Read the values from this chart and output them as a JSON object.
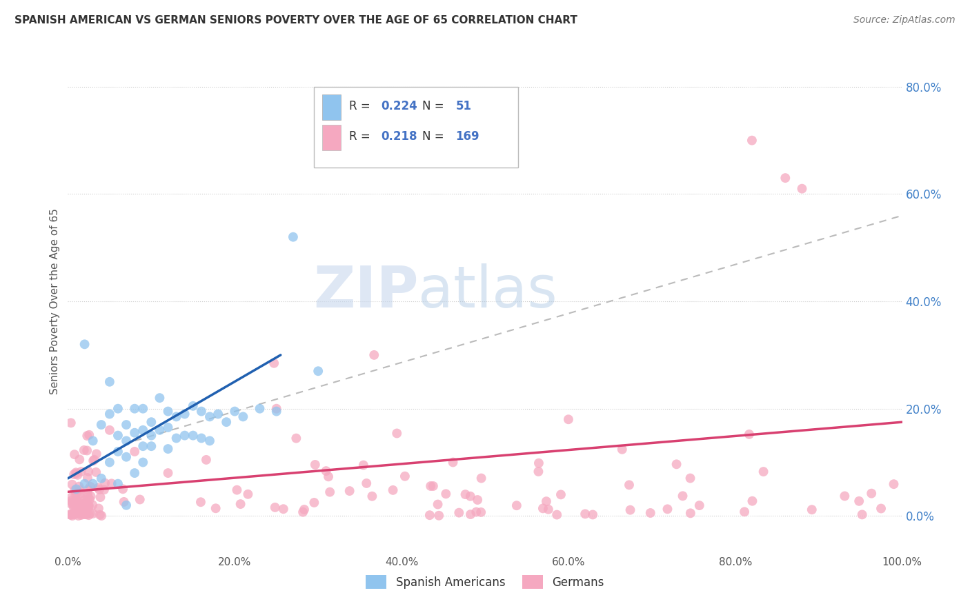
{
  "title": "SPANISH AMERICAN VS GERMAN SENIORS POVERTY OVER THE AGE OF 65 CORRELATION CHART",
  "source": "Source: ZipAtlas.com",
  "ylabel": "Seniors Poverty Over the Age of 65",
  "xlim": [
    0,
    1.0
  ],
  "ylim": [
    -0.07,
    0.87
  ],
  "xtick_labels": [
    "0.0%",
    "20.0%",
    "40.0%",
    "60.0%",
    "80.0%",
    "100.0%"
  ],
  "ytick_labels": [
    "0.0%",
    "20.0%",
    "40.0%",
    "60.0%",
    "80.0%"
  ],
  "ytick_positions": [
    0.0,
    0.2,
    0.4,
    0.6,
    0.8
  ],
  "blue_R": "0.224",
  "blue_N": "51",
  "pink_R": "0.218",
  "pink_N": "169",
  "blue_color": "#90C4EE",
  "pink_color": "#F5A8C0",
  "blue_line_color": "#2060B0",
  "pink_line_color": "#D84070",
  "dashed_line_color": "#BBBBBB",
  "watermark_zip": "ZIP",
  "watermark_atlas": "atlas",
  "legend_label_blue": "Spanish Americans",
  "legend_label_pink": "Germans",
  "blue_line_x": [
    0.0,
    0.255
  ],
  "blue_line_y": [
    0.07,
    0.3
  ],
  "pink_line_x": [
    0.0,
    1.0
  ],
  "pink_line_y": [
    0.045,
    0.175
  ],
  "dashed_line_x": [
    0.08,
    1.0
  ],
  "dashed_line_y": [
    0.14,
    0.56
  ]
}
